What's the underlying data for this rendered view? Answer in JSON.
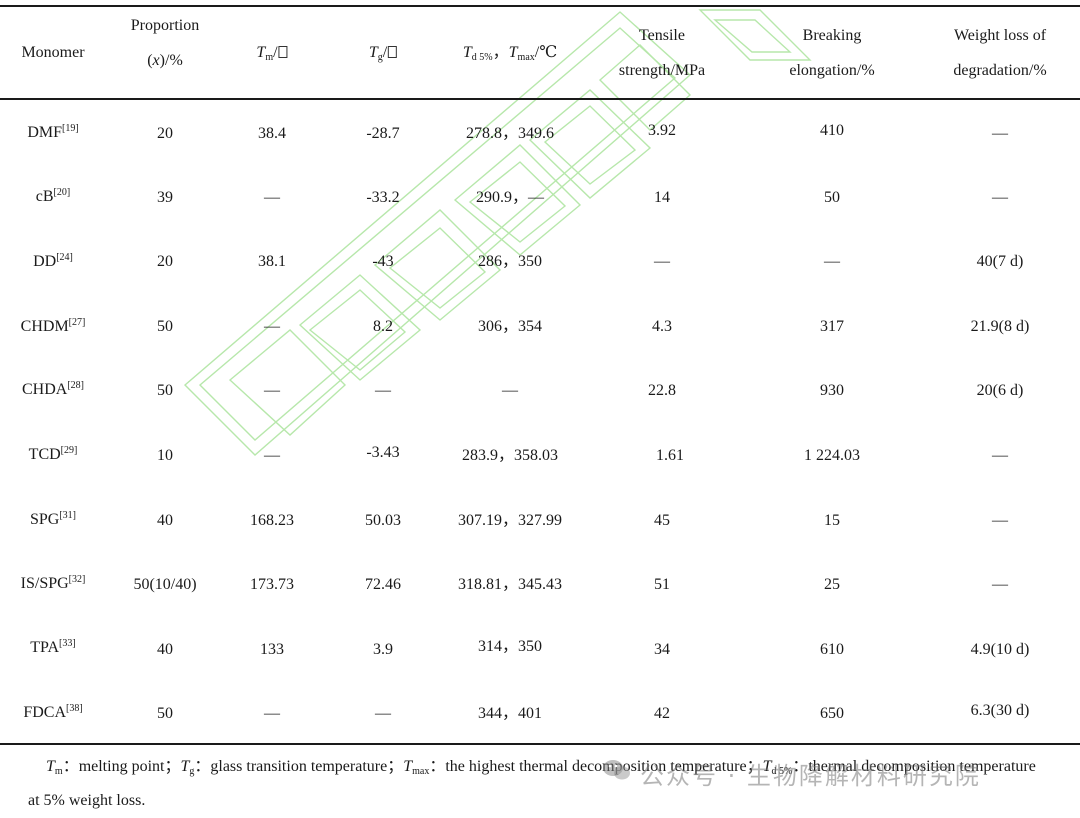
{
  "table": {
    "headers": {
      "monomer": "Monomer",
      "proportion_line1": "Proportion",
      "proportion_var": "x",
      "proportion_unit": "/%",
      "tm_sym": "T",
      "tm_sub": "m",
      "tm_unit": "/",
      "tg_sym": "T",
      "tg_sub": "g",
      "tg_unit": "/",
      "td_sym": "T",
      "td_sub": "d 5%",
      "td_sep": "，",
      "tmax_sym": "T",
      "tmax_sub": "max",
      "td_unit": "/℃",
      "tensile_line1": "Tensile",
      "tensile_line2": "strength/MPa",
      "breaking_line1": "Breaking",
      "breaking_line2": "elongation/%",
      "weight_line1": "Weight loss of",
      "weight_line2": "degradation/%"
    },
    "rows": [
      {
        "name": "DMF",
        "ref": "[19]",
        "prop": "20",
        "tm": "38.4",
        "tg": "-28.7",
        "td": "278.8，349.6",
        "ts": "3.92",
        "be": "410",
        "wl": "—"
      },
      {
        "name": "cB",
        "ref": "[20]",
        "prop": "39",
        "tm": "—",
        "tg": "-33.2",
        "td": "290.9，—",
        "ts": "14",
        "be": "50",
        "wl": "—"
      },
      {
        "name": "DD",
        "ref": "[24]",
        "prop": "20",
        "tm": "38.1",
        "tg": "-43",
        "td": "286，350",
        "ts": "—",
        "be": "—",
        "wl": "40(7 d)"
      },
      {
        "name": "CHDM",
        "ref": "[27]",
        "prop": "50",
        "tm": "—",
        "tg": "8.2",
        "td": "306，354",
        "ts": "4.3",
        "be": "317",
        "wl": "21.9(8 d)"
      },
      {
        "name": "CHDA",
        "ref": "[28]",
        "prop": "50",
        "tm": "—",
        "tg": "—",
        "td": "—",
        "ts": "22.8",
        "be": "930",
        "wl": "20(6 d)"
      },
      {
        "name": "TCD",
        "ref": "[29]",
        "prop": "10",
        "tm": "—",
        "tg": "-3.43",
        "td": "283.9，358.03",
        "ts": "1.61",
        "be": "1 224.03",
        "wl": "—"
      },
      {
        "name": "SPG",
        "ref": "[31]",
        "prop": "40",
        "tm": "168.23",
        "tg": "50.03",
        "td": "307.19，327.99",
        "ts": "45",
        "be": "15",
        "wl": "—"
      },
      {
        "name": "IS/SPG",
        "ref": "[32]",
        "prop": "50(10/40)",
        "tm": "173.73",
        "tg": "72.46",
        "td": "318.81，345.43",
        "ts": "51",
        "be": "25",
        "wl": "—"
      },
      {
        "name": "TPA",
        "ref": "[33]",
        "prop": "40",
        "tm": "133",
        "tg": "3.9",
        "td": "314，350",
        "ts": "34",
        "be": "610",
        "wl": "4.9(10 d)"
      },
      {
        "name": "FDCA",
        "ref": "[38]",
        "prop": "50",
        "tm": "—",
        "tg": "—",
        "td": "344，401",
        "ts": "42",
        "be": "650",
        "wl": "6.3(30 d)"
      }
    ]
  },
  "footnote": {
    "tm_sym": "T",
    "tm_sub": "m",
    "tm_text": "：melting point；",
    "tg_sym": "T",
    "tg_sub": "g",
    "tg_text": "：glass transition temperature；",
    "tmax_sym": "T",
    "tmax_sub": "max",
    "tmax_text": "：the highest thermal decomposition temperature；",
    "td_sym": "T",
    "td_sub": "d 5%",
    "td_text": "：thermal decomposition temperature",
    "line2": "at 5% weight loss."
  },
  "watermark": {
    "text": "公众号 · 生物降解材料研究院"
  },
  "colors": {
    "rule": "#1a1a1a",
    "watermark_green": "#7fd36e",
    "watermark_gray": "#888888"
  }
}
